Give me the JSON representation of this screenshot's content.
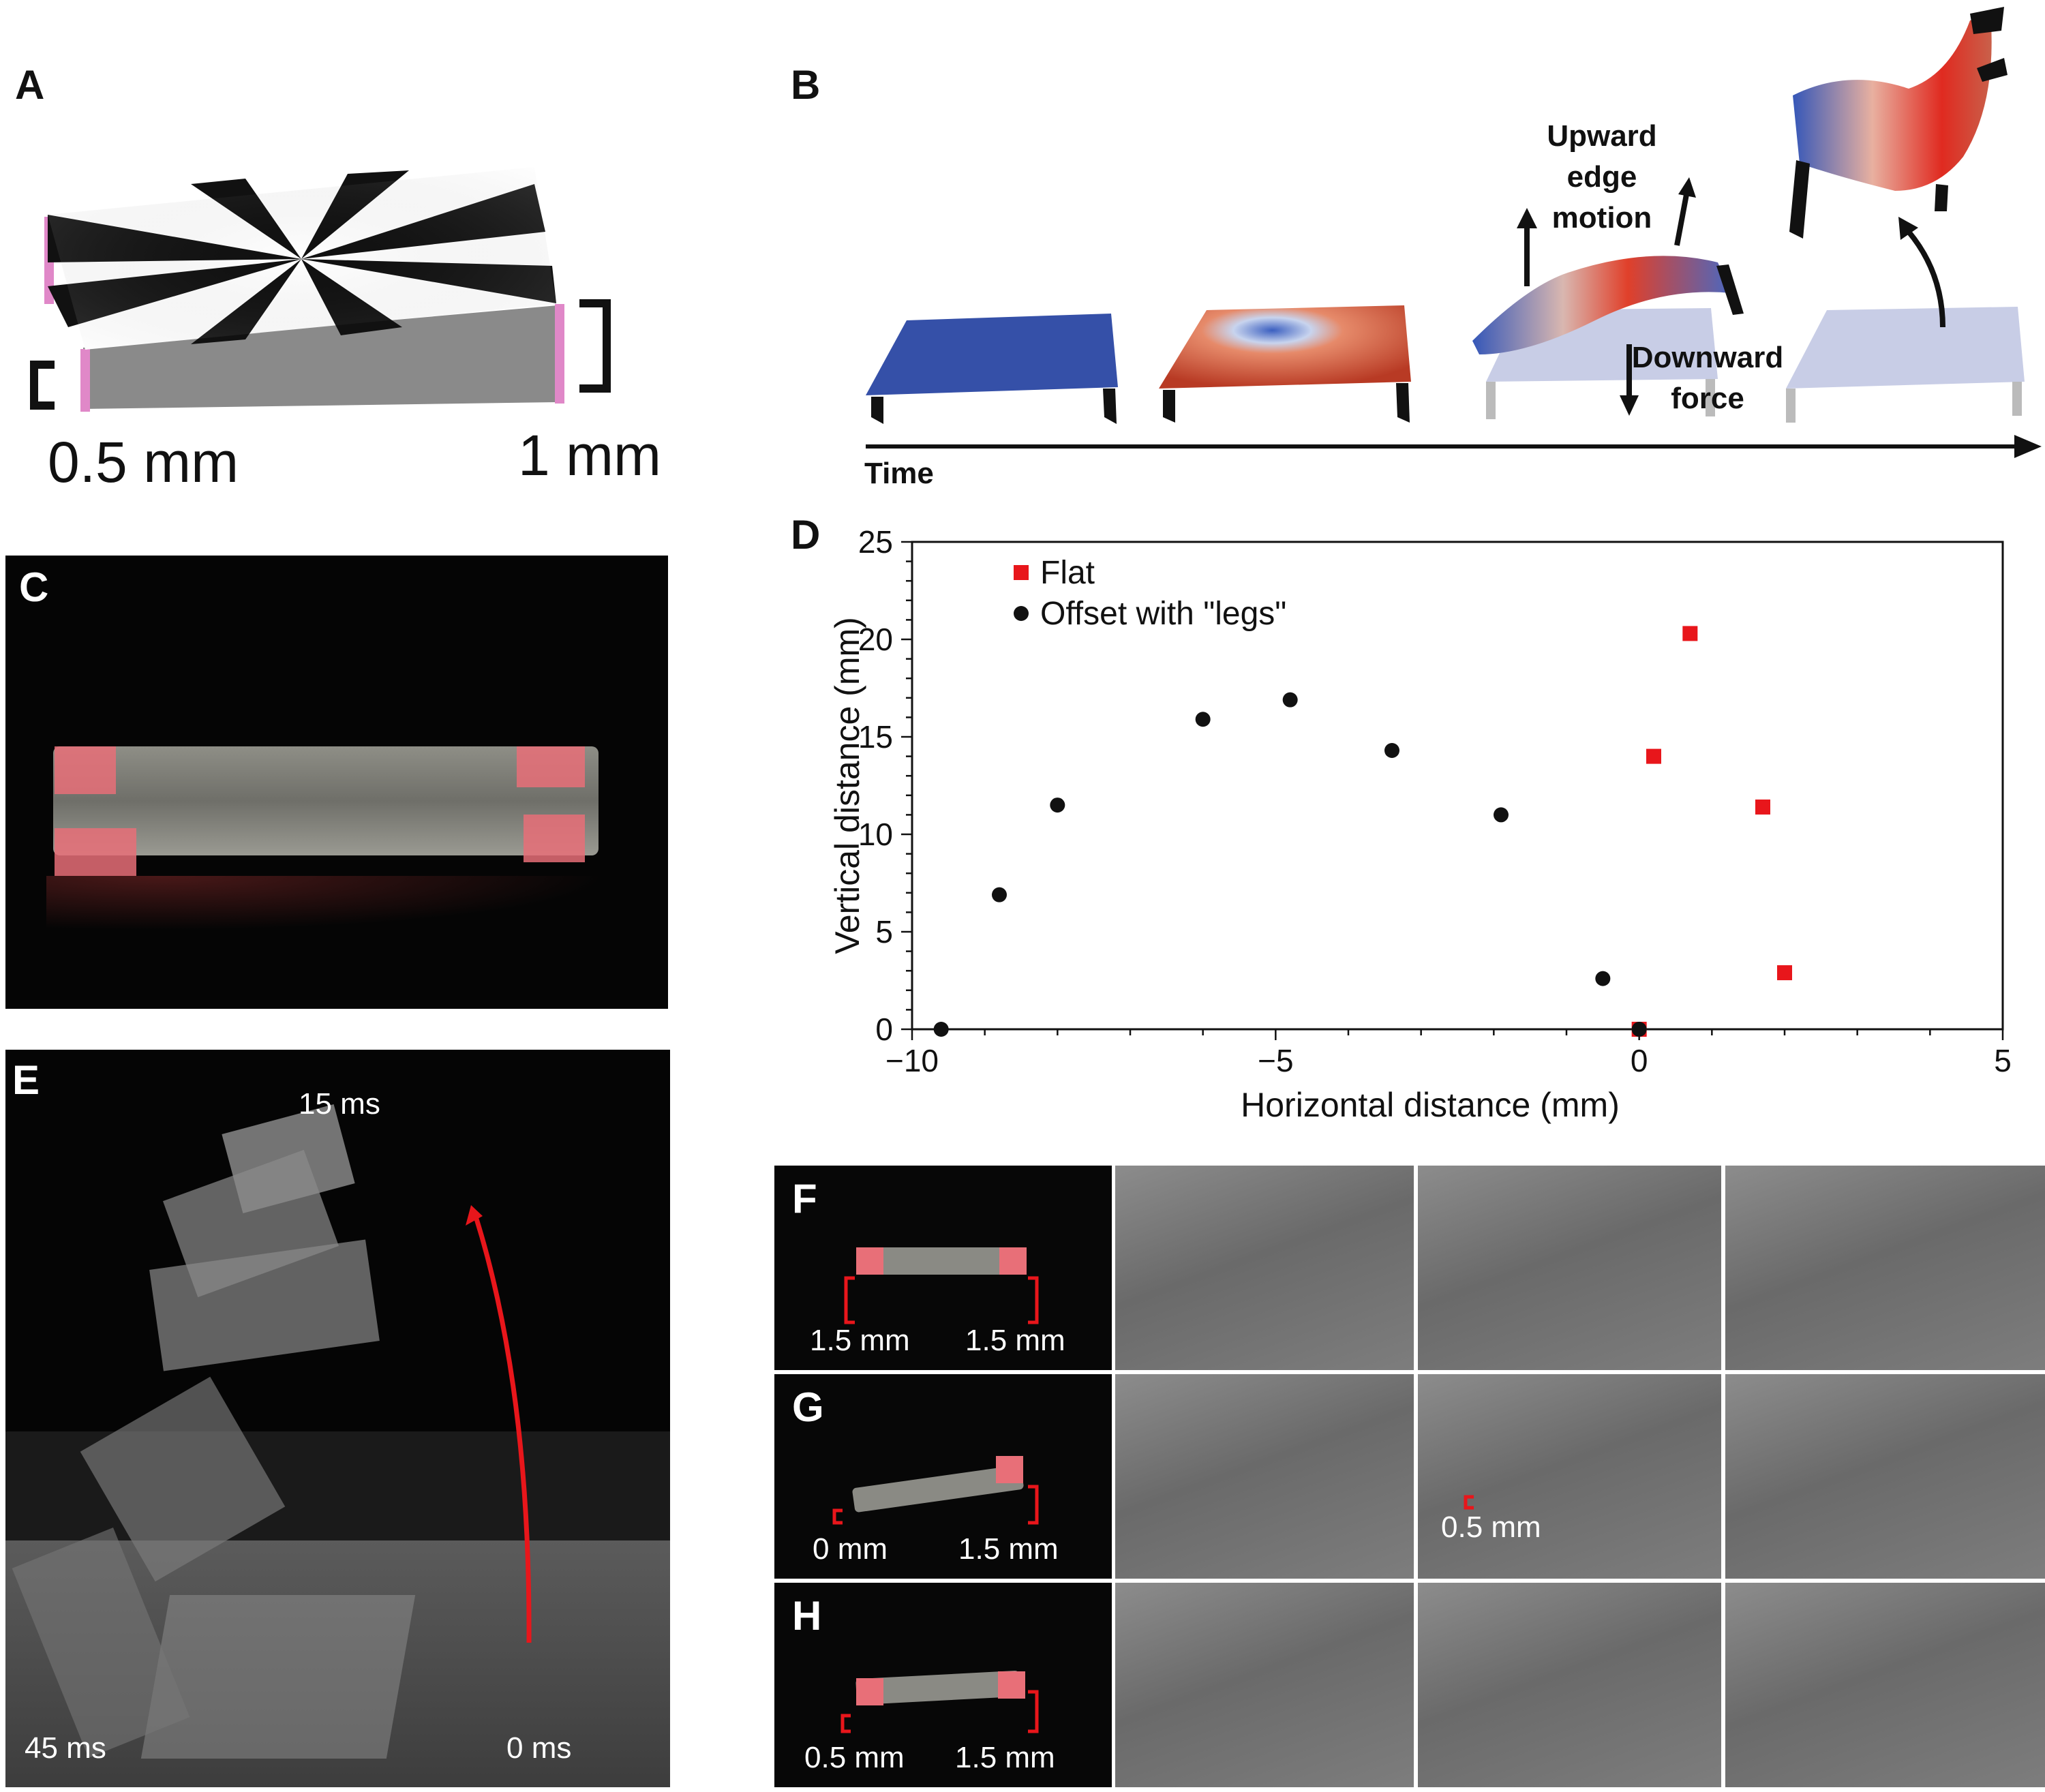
{
  "panels": {
    "A": "A",
    "B": "B",
    "C": "C",
    "D": "D",
    "E": "E",
    "F": "F",
    "G": "G",
    "H": "H"
  },
  "panel_a": {
    "left_height": "0.5 mm",
    "right_height": "1 mm"
  },
  "panel_b": {
    "upward_label": "Upward edge motion",
    "downward_label": "Downward force",
    "time_label": "Time"
  },
  "panel_e": {
    "t_top": "15 ms",
    "t_left": "45 ms",
    "t_right": "0 ms"
  },
  "panel_f": {
    "left": "1.5 mm",
    "right": "1.5 mm"
  },
  "panel_g": {
    "left": "0 mm",
    "right": "1.5 mm",
    "frame_label": "0.5 mm"
  },
  "panel_h": {
    "left": "0.5 mm",
    "right": "1.5 mm"
  },
  "colors": {
    "flat": "#e8161b",
    "offset": "#111111",
    "arrow": "#e8161b",
    "bracket": "#e8161b"
  },
  "chart_data": {
    "type": "scatter",
    "xlabel": "Horizontal distance (mm)",
    "ylabel": "Vertical distance (mm)",
    "xlim": [
      -10,
      5
    ],
    "ylim": [
      0,
      25
    ],
    "xticks": [
      -10,
      -5,
      0,
      5
    ],
    "xtick_labels": [
      "−10",
      "−5",
      "0",
      "5"
    ],
    "yticks": [
      0,
      5,
      10,
      15,
      20,
      25
    ],
    "grid": false,
    "legend_position": "top-left",
    "series": [
      {
        "name": "Flat",
        "marker": "square",
        "color": "#e8161b",
        "points": [
          [
            0,
            0
          ],
          [
            0.2,
            14
          ],
          [
            0.7,
            20.3
          ],
          [
            1.7,
            11.4
          ],
          [
            2,
            2.9
          ]
        ]
      },
      {
        "name": "Offset with \"legs\"",
        "marker": "circle",
        "color": "#111111",
        "points": [
          [
            -9.6,
            0
          ],
          [
            -8.8,
            6.9
          ],
          [
            -8,
            11.5
          ],
          [
            -6,
            15.9
          ],
          [
            -4.8,
            16.9
          ],
          [
            -3.4,
            14.3
          ],
          [
            -1.9,
            11
          ],
          [
            -0.5,
            2.6
          ],
          [
            0,
            0
          ]
        ]
      }
    ]
  }
}
